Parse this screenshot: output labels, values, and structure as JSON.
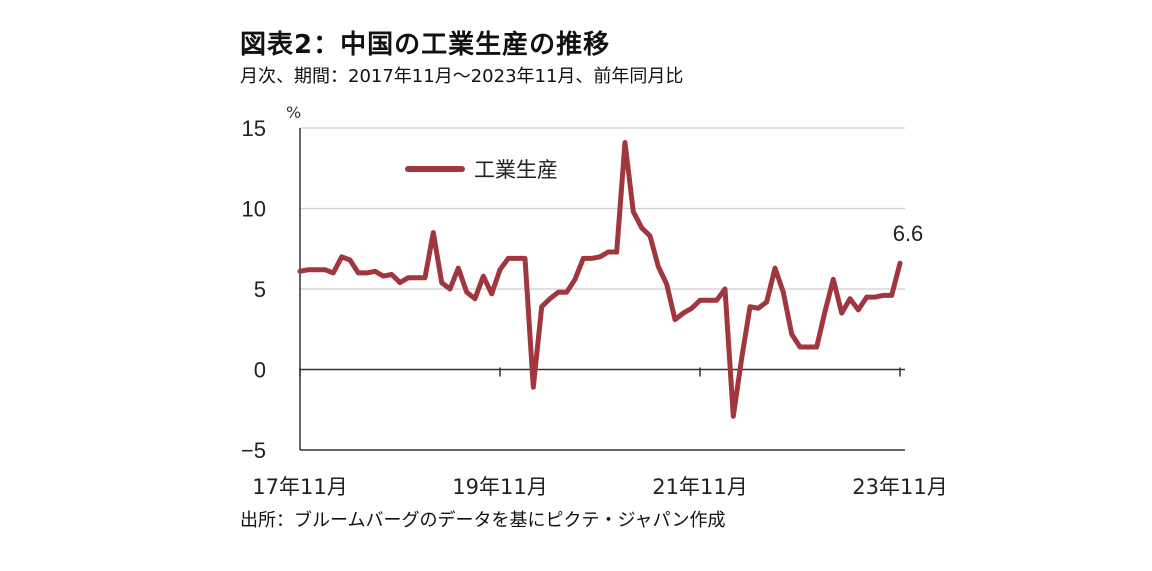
{
  "title": "図表2：中国の工業生産の推移",
  "subtitle": "月次、期間：2017年11月～2023年11月、前年同月比",
  "source": "出所：ブルームバーグのデータを基にピクテ・ジャパン作成",
  "colors": {
    "series": "#a0373f",
    "grid": "#cfcfcf",
    "axis": "#333333"
  },
  "chart_data": {
    "type": "line",
    "title": "図表2：中国の工業生産の推移",
    "ylabel": "%",
    "ylim": [
      -5,
      15
    ],
    "yticks": [
      15,
      10,
      5,
      0,
      -5
    ],
    "xticks": [
      "17年11月",
      "19年11月",
      "21年11月",
      "23年11月"
    ],
    "grid": true,
    "legend_position": "top-left",
    "annotation": "6.6",
    "series": [
      {
        "name": "工業生産",
        "x": [
          "2017-11",
          "2017-12",
          "2018-01",
          "2018-02",
          "2018-03",
          "2018-04",
          "2018-05",
          "2018-06",
          "2018-07",
          "2018-08",
          "2018-09",
          "2018-10",
          "2018-11",
          "2018-12",
          "2019-01",
          "2019-02",
          "2019-03",
          "2019-04",
          "2019-05",
          "2019-06",
          "2019-07",
          "2019-08",
          "2019-09",
          "2019-10",
          "2019-11",
          "2019-12",
          "2020-01",
          "2020-02",
          "2020-03",
          "2020-04",
          "2020-05",
          "2020-06",
          "2020-07",
          "2020-08",
          "2020-09",
          "2020-10",
          "2020-11",
          "2020-12",
          "2021-01",
          "2021-02",
          "2021-03",
          "2021-04",
          "2021-05",
          "2021-06",
          "2021-07",
          "2021-08",
          "2021-09",
          "2021-10",
          "2021-11",
          "2021-12",
          "2022-01",
          "2022-02",
          "2022-03",
          "2022-04",
          "2022-05",
          "2022-06",
          "2022-07",
          "2022-08",
          "2022-09",
          "2022-10",
          "2022-11",
          "2022-12",
          "2023-01",
          "2023-02",
          "2023-03",
          "2023-04",
          "2023-05",
          "2023-06",
          "2023-07",
          "2023-08",
          "2023-09",
          "2023-10",
          "2023-11"
        ],
        "values": [
          6.1,
          6.2,
          6.2,
          6.2,
          6.0,
          7.0,
          6.8,
          6.0,
          6.0,
          6.1,
          5.8,
          5.9,
          5.4,
          5.7,
          5.7,
          5.7,
          8.5,
          5.4,
          5.0,
          6.3,
          4.8,
          4.4,
          5.8,
          4.7,
          6.2,
          6.9,
          6.9,
          6.9,
          -1.1,
          3.9,
          4.4,
          4.8,
          4.8,
          5.6,
          6.9,
          6.9,
          7.0,
          7.3,
          7.3,
          14.1,
          9.8,
          8.8,
          8.3,
          6.4,
          5.3,
          3.1,
          3.5,
          3.8,
          4.3,
          4.3,
          4.3,
          5.0,
          -2.9,
          0.7,
          3.9,
          3.8,
          4.2,
          6.3,
          4.8,
          2.2,
          1.4,
          1.4,
          1.4,
          3.6,
          5.6,
          3.5,
          4.4,
          3.7,
          4.5,
          4.5,
          4.6,
          4.6,
          6.6
        ]
      }
    ]
  }
}
